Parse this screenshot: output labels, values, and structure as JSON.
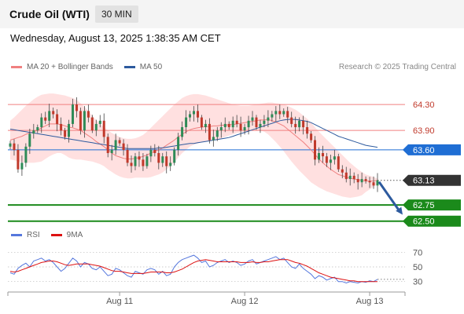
{
  "header": {
    "title": "Crude Oil (WTI)",
    "timeframe": "30 MIN"
  },
  "datetime": "Wednesday, August 13, 2025 1:38:35 AM CET",
  "copyright": "Research © 2025 Trading Central",
  "colors": {
    "ma20": "#f08080",
    "bollinger_fill": "#ffd6d6",
    "ma50": "#2d5a9e",
    "bull": "#2e8b57",
    "bear": "#c0392b",
    "pivot": "#1f6ed4",
    "support": "#1b8a1b",
    "current": "#333333",
    "rsi": "#5577dd",
    "rsi_ma": "#dd1111"
  },
  "chart_data": [
    {
      "type": "candlestick",
      "legend": [
        {
          "label": "MA 20 + Bollinger Bands",
          "color": "#f08080"
        },
        {
          "label": "MA 50",
          "color": "#2d5a9e"
        }
      ],
      "x_ticks": [
        "Aug 11",
        "Aug 12",
        "Aug 13"
      ],
      "ylim": [
        62.4,
        64.58
      ],
      "close": [
        63.7,
        63.6,
        63.3,
        63.4,
        63.65,
        63.85,
        63.9,
        63.95,
        64.1,
        64.05,
        64.2,
        64.15,
        64.0,
        63.9,
        63.8,
        64.0,
        64.3,
        64.2,
        63.9,
        64.2,
        64.1,
        63.9,
        64.0,
        64.05,
        63.8,
        63.55,
        63.6,
        63.75,
        63.7,
        63.6,
        63.4,
        63.35,
        63.5,
        63.45,
        63.35,
        63.5,
        63.6,
        63.55,
        63.4,
        63.5,
        63.35,
        63.4,
        63.6,
        63.8,
        63.95,
        64.1,
        64.15,
        64.2,
        64.1,
        63.95,
        64.0,
        63.75,
        63.8,
        63.9,
        63.95,
        64.0,
        63.95,
        64.05,
        64.0,
        63.9,
        63.95,
        64.05,
        64.1,
        63.95,
        64.0,
        64.05,
        64.1,
        64.15,
        64.2,
        64.15,
        64.2,
        64.1,
        64.0,
        63.95,
        64.05,
        63.95,
        63.85,
        63.75,
        63.45,
        63.55,
        63.5,
        63.4,
        63.45,
        63.5,
        63.3,
        63.25,
        63.15,
        63.2,
        63.15,
        63.1,
        63.15,
        63.12,
        63.1,
        63.05,
        63.13
      ],
      "ma20": [
        63.75,
        63.77,
        63.79,
        63.81,
        63.84,
        63.86,
        63.88,
        63.9,
        63.94,
        63.97,
        64.0,
        64.0,
        64.0,
        63.99,
        63.97,
        63.95,
        63.94,
        63.92,
        63.9,
        63.86,
        63.82,
        63.78,
        63.73,
        63.69,
        63.65,
        63.6,
        63.55,
        63.51,
        63.49,
        63.47,
        63.46,
        63.46,
        63.47,
        63.48,
        63.5,
        63.52,
        63.55,
        63.58,
        63.6,
        63.63,
        63.67,
        63.71,
        63.75,
        63.8,
        63.84,
        63.88,
        63.91,
        63.93,
        63.94,
        63.95,
        63.96,
        63.96,
        63.97,
        63.97,
        63.98,
        63.98,
        63.99,
        63.99,
        64.0,
        64.01,
        64.02,
        64.03,
        64.04,
        64.05,
        64.06,
        64.06,
        64.07,
        64.05,
        64.03,
        64.0,
        63.97,
        63.92,
        63.87,
        63.82,
        63.77,
        63.72,
        63.66,
        63.6,
        63.53,
        63.46,
        63.4,
        63.35,
        63.3,
        63.26,
        63.22,
        63.2,
        63.18,
        63.16,
        63.15,
        63.14,
        63.13,
        63.12,
        63.12,
        63.12,
        63.13
      ],
      "bb_upper": [
        64.05,
        64.1,
        64.16,
        64.22,
        64.28,
        64.33,
        64.38,
        64.42,
        64.45,
        64.46,
        64.47,
        64.47,
        64.46,
        64.45,
        64.44,
        64.42,
        64.4,
        64.37,
        64.32,
        64.26,
        64.2,
        64.13,
        64.06,
        64.0,
        63.95,
        63.9,
        63.86,
        63.83,
        63.8,
        63.78,
        63.77,
        63.77,
        63.78,
        63.8,
        63.83,
        63.88,
        63.94,
        64.0,
        64.06,
        64.12,
        64.18,
        64.24,
        64.3,
        64.35,
        64.4,
        64.43,
        64.45,
        64.46,
        64.46,
        64.45,
        64.44,
        64.42,
        64.4,
        64.38,
        64.36,
        64.34,
        64.32,
        64.3,
        64.29,
        64.28,
        64.28,
        64.28,
        64.29,
        64.3,
        64.31,
        64.32,
        64.33,
        64.33,
        64.32,
        64.31,
        64.3,
        64.28,
        64.25,
        64.22,
        64.18,
        64.13,
        64.08,
        64.02,
        63.95,
        63.88,
        63.82,
        63.76,
        63.7,
        63.64,
        63.58,
        63.52,
        63.46,
        63.4,
        63.35,
        63.3,
        63.26,
        63.22,
        63.2,
        63.18,
        63.16
      ],
      "bb_lower": [
        63.45,
        63.44,
        63.42,
        63.41,
        63.4,
        63.4,
        63.4,
        63.41,
        63.42,
        63.46,
        63.5,
        63.53,
        63.55,
        63.55,
        63.52,
        63.48,
        63.46,
        63.45,
        63.45,
        63.44,
        63.43,
        63.42,
        63.4,
        63.38,
        63.35,
        63.3,
        63.26,
        63.22,
        63.19,
        63.17,
        63.16,
        63.16,
        63.17,
        63.17,
        63.17,
        63.17,
        63.18,
        63.2,
        63.22,
        63.25,
        63.3,
        63.35,
        63.41,
        63.48,
        63.55,
        63.6,
        63.65,
        63.68,
        63.7,
        63.72,
        63.73,
        63.74,
        63.75,
        63.76,
        63.78,
        63.8,
        63.82,
        63.84,
        63.86,
        63.87,
        63.88,
        63.89,
        63.9,
        63.9,
        63.9,
        63.88,
        63.84,
        63.78,
        63.72,
        63.65,
        63.58,
        63.5,
        63.42,
        63.35,
        63.28,
        63.22,
        63.16,
        63.1,
        63.06,
        63.02,
        62.99,
        62.96,
        62.94,
        62.92,
        62.9,
        62.88,
        62.87,
        62.86,
        62.87,
        62.88,
        62.9,
        62.95,
        62.99,
        63.03,
        63.07
      ],
      "ma50": [
        63.92,
        63.91,
        63.9,
        63.89,
        63.88,
        63.87,
        63.86,
        63.85,
        63.84,
        63.83,
        63.82,
        63.81,
        63.8,
        63.79,
        63.78,
        63.77,
        63.76,
        63.75,
        63.74,
        63.73,
        63.72,
        63.71,
        63.7,
        63.69,
        63.68,
        63.67,
        63.66,
        63.65,
        63.64,
        63.63,
        63.62,
        63.62,
        63.62,
        63.62,
        63.62,
        63.62,
        63.62,
        63.62,
        63.63,
        63.63,
        63.64,
        63.65,
        63.66,
        63.67,
        63.68,
        63.69,
        63.7,
        63.7,
        63.71,
        63.72,
        63.73,
        63.74,
        63.75,
        63.76,
        63.77,
        63.78,
        63.79,
        63.81,
        63.83,
        63.85,
        63.87,
        63.89,
        63.91,
        63.93,
        63.95,
        63.97,
        63.99,
        64.01,
        64.03,
        64.05,
        64.06,
        64.07,
        64.07,
        64.07,
        64.06,
        64.05,
        64.04,
        64.02,
        63.99,
        63.96,
        63.93,
        63.9,
        63.87,
        63.84,
        63.81,
        63.79,
        63.77,
        63.75,
        63.73,
        63.71,
        63.69,
        63.67,
        63.66,
        63.65,
        63.64
      ],
      "levels": [
        {
          "label": "64.30",
          "value": 64.3,
          "kind": "resistance"
        },
        {
          "label": "63.90",
          "value": 63.9,
          "kind": "resistance"
        },
        {
          "label": "63.60",
          "value": 63.6,
          "kind": "pivot"
        },
        {
          "label": "63.13",
          "value": 63.13,
          "kind": "current"
        },
        {
          "label": "62.75",
          "value": 62.75,
          "kind": "support"
        },
        {
          "label": "62.50",
          "value": 62.5,
          "kind": "support"
        }
      ],
      "projection": {
        "from": 63.13,
        "to": 62.6
      }
    },
    {
      "type": "line",
      "legend": [
        {
          "label": "RSI",
          "color": "#5577dd"
        },
        {
          "label": "9MA",
          "color": "#dd1111"
        }
      ],
      "ylim": [
        20,
        80
      ],
      "yticks": [
        30,
        50,
        70
      ],
      "rsi": [
        42,
        40,
        48,
        52,
        55,
        50,
        58,
        60,
        62,
        58,
        60,
        56,
        50,
        44,
        48,
        55,
        62,
        58,
        50,
        56,
        54,
        48,
        46,
        50,
        44,
        38,
        40,
        48,
        46,
        42,
        38,
        36,
        44,
        42,
        40,
        46,
        48,
        46,
        40,
        44,
        38,
        40,
        50,
        56,
        60,
        62,
        64,
        66,
        62,
        56,
        58,
        50,
        52,
        56,
        58,
        60,
        56,
        58,
        56,
        52,
        54,
        58,
        60,
        54,
        56,
        58,
        60,
        62,
        64,
        60,
        62,
        56,
        50,
        48,
        54,
        48,
        44,
        40,
        34,
        38,
        36,
        32,
        34,
        36,
        30,
        30,
        28,
        30,
        29,
        28,
        30,
        29,
        31,
        30,
        33
      ],
      "rsi_ma": [
        44,
        43,
        44,
        46,
        48,
        50,
        52,
        54,
        56,
        57,
        58,
        58,
        57,
        55,
        53,
        52,
        53,
        54,
        54,
        54,
        54,
        53,
        52,
        51,
        49,
        47,
        45,
        44,
        44,
        43,
        42,
        41,
        41,
        41,
        41,
        42,
        43,
        43,
        43,
        43,
        42,
        42,
        43,
        45,
        47,
        50,
        53,
        56,
        58,
        59,
        60,
        59,
        58,
        57,
        57,
        57,
        57,
        57,
        57,
        56,
        56,
        56,
        57,
        56,
        56,
        57,
        57,
        58,
        59,
        60,
        60,
        60,
        58,
        56,
        55,
        53,
        51,
        48,
        45,
        42,
        40,
        38,
        36,
        35,
        34,
        33,
        32,
        31,
        31,
        30,
        30,
        30,
        30,
        30,
        30
      ]
    }
  ]
}
